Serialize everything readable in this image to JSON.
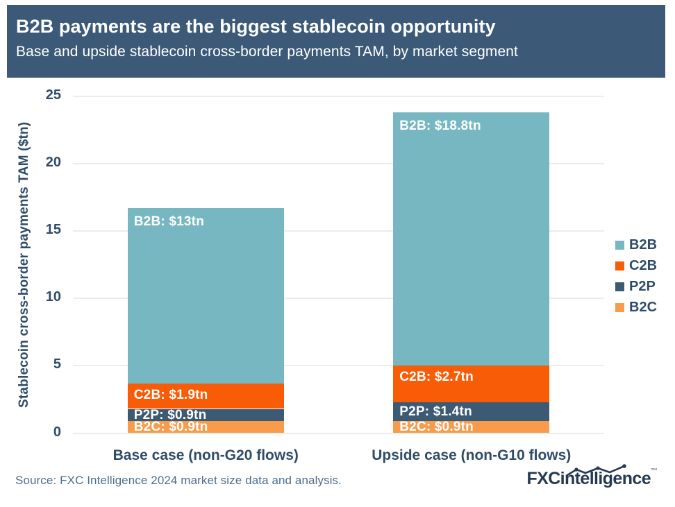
{
  "header": {
    "title": "B2B payments are the biggest stablecoin opportunity",
    "subtitle": "Base and upside stablecoin cross-border payments TAM, by market segment"
  },
  "chart_data": {
    "type": "bar",
    "stacked": true,
    "title": "B2B payments are the biggest stablecoin opportunity",
    "subtitle": "Base and upside stablecoin cross-border payments TAM, by market segment",
    "categories": [
      "Base case (non-G20 flows)",
      "Upside case (non-G10 flows)"
    ],
    "series": [
      {
        "name": "B2C",
        "color": "#f89c4b",
        "values": [
          0.9,
          0.9
        ],
        "labels": [
          "B2C: $0.9tn",
          "B2C: $0.9tn"
        ]
      },
      {
        "name": "P2P",
        "color": "#3c5a74",
        "values": [
          0.9,
          1.4
        ],
        "labels": [
          "P2P: $0.9tn",
          "P2P: $1.4tn"
        ]
      },
      {
        "name": "C2B",
        "color": "#f85c07",
        "values": [
          1.9,
          2.7
        ],
        "labels": [
          "C2B: $1.9tn",
          "C2B: $2.7tn"
        ]
      },
      {
        "name": "B2B",
        "color": "#77b7c1",
        "values": [
          13,
          18.8
        ],
        "labels": [
          "B2B: $13tn",
          "B2B: $18.8tn"
        ]
      }
    ],
    "totals": [
      16.7,
      23.8
    ],
    "xlabel": "",
    "ylabel": "Stablecoin cross-border payments TAM ($tn)",
    "ylim": [
      0,
      25
    ],
    "yticks": [
      0,
      5,
      10,
      15,
      20,
      25
    ],
    "grid": true,
    "legend": {
      "position": "right",
      "items": [
        "B2B",
        "C2B",
        "P2P",
        "B2C"
      ]
    }
  },
  "footer": {
    "source": "Source: FXC Intelligence 2024 market size data and analysis.",
    "logo": {
      "bold": "FXC",
      "rest": "intelligence",
      "tm": "™",
      "icon": "sparkline-icon"
    }
  },
  "colors": {
    "header_bg": "#3c5a77",
    "text": "#2e4c68",
    "grid": "#ececec",
    "source_text": "#4b6f8e",
    "logo": "#253a52"
  }
}
